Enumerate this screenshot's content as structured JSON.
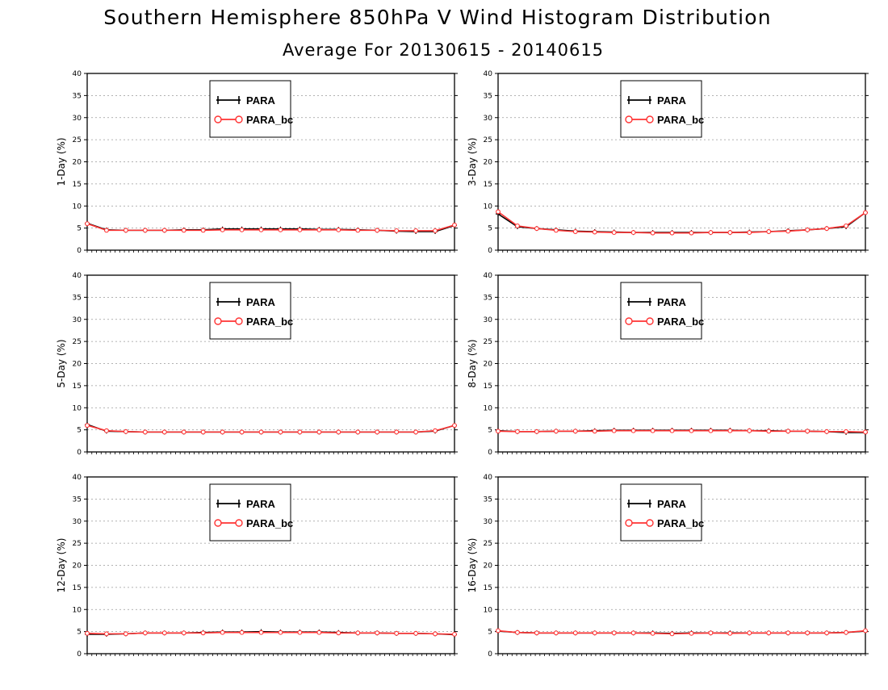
{
  "title": "Southern Hemisphere 850hPa V Wind Histogram Distribution",
  "subtitle": "Average For 20130615 - 20140615",
  "colors": {
    "PARA": "#000000",
    "PARA_bc": "#ff3333",
    "grid": "#999999"
  },
  "chart_data": [
    {
      "type": "line",
      "ylabel": "1-Day (%)",
      "ylim": [
        0,
        40
      ],
      "yticks": [
        0,
        5,
        10,
        15,
        20,
        25,
        30,
        35,
        40
      ],
      "grid": true,
      "legend": "top-center",
      "series": [
        {
          "name": "PARA",
          "marker": "plus",
          "values": [
            6.1,
            4.6,
            4.5,
            4.5,
            4.5,
            4.6,
            4.6,
            4.8,
            4.8,
            4.8,
            4.8,
            4.8,
            4.7,
            4.7,
            4.6,
            4.5,
            4.3,
            4.2,
            4.2,
            5.6
          ]
        },
        {
          "name": "PARA_bc",
          "marker": "circle",
          "values": [
            6.0,
            4.5,
            4.5,
            4.5,
            4.5,
            4.5,
            4.5,
            4.6,
            4.6,
            4.6,
            4.6,
            4.6,
            4.6,
            4.6,
            4.5,
            4.5,
            4.4,
            4.4,
            4.4,
            5.7
          ]
        }
      ]
    },
    {
      "type": "line",
      "ylabel": "3-Day (%)",
      "ylim": [
        0,
        40
      ],
      "yticks": [
        0,
        5,
        10,
        15,
        20,
        25,
        30,
        35,
        40
      ],
      "grid": true,
      "legend": "top-center",
      "series": [
        {
          "name": "PARA",
          "marker": "plus",
          "values": [
            8.2,
            5.3,
            4.9,
            4.6,
            4.3,
            4.2,
            4.1,
            4.0,
            4.0,
            4.0,
            4.0,
            4.0,
            4.0,
            4.1,
            4.2,
            4.4,
            4.6,
            4.9,
            5.3,
            8.5
          ]
        },
        {
          "name": "PARA_bc",
          "marker": "circle",
          "values": [
            8.7,
            5.5,
            4.9,
            4.5,
            4.2,
            4.1,
            4.0,
            4.0,
            3.9,
            3.9,
            3.9,
            4.0,
            4.0,
            4.0,
            4.2,
            4.3,
            4.6,
            4.9,
            5.5,
            8.5
          ]
        }
      ]
    },
    {
      "type": "line",
      "ylabel": "5-Day (%)",
      "ylim": [
        0,
        40
      ],
      "yticks": [
        0,
        5,
        10,
        15,
        20,
        25,
        30,
        35,
        40
      ],
      "grid": true,
      "legend": "top-center",
      "series": [
        {
          "name": "PARA",
          "marker": "plus",
          "values": [
            6.2,
            4.7,
            4.6,
            4.5,
            4.5,
            4.5,
            4.5,
            4.5,
            4.5,
            4.5,
            4.5,
            4.5,
            4.5,
            4.5,
            4.5,
            4.5,
            4.5,
            4.5,
            4.7,
            6.0
          ]
        },
        {
          "name": "PARA_bc",
          "marker": "circle",
          "values": [
            6.0,
            4.8,
            4.6,
            4.5,
            4.5,
            4.5,
            4.5,
            4.5,
            4.5,
            4.5,
            4.5,
            4.5,
            4.5,
            4.5,
            4.5,
            4.5,
            4.5,
            4.5,
            4.8,
            6.0
          ]
        }
      ]
    },
    {
      "type": "line",
      "ylabel": "8-Day (%)",
      "ylim": [
        0,
        40
      ],
      "yticks": [
        0,
        5,
        10,
        15,
        20,
        25,
        30,
        35,
        40
      ],
      "grid": true,
      "legend": "top-center",
      "series": [
        {
          "name": "PARA",
          "marker": "plus",
          "values": [
            4.8,
            4.6,
            4.6,
            4.7,
            4.7,
            4.8,
            4.9,
            4.9,
            4.9,
            4.9,
            4.9,
            4.9,
            4.9,
            4.8,
            4.8,
            4.7,
            4.7,
            4.6,
            4.4,
            4.4
          ]
        },
        {
          "name": "PARA_bc",
          "marker": "circle",
          "values": [
            4.7,
            4.6,
            4.6,
            4.7,
            4.7,
            4.7,
            4.8,
            4.8,
            4.8,
            4.8,
            4.8,
            4.8,
            4.8,
            4.8,
            4.7,
            4.7,
            4.7,
            4.6,
            4.6,
            4.5
          ]
        }
      ]
    },
    {
      "type": "line",
      "ylabel": "12-Day (%)",
      "ylim": [
        0,
        40
      ],
      "yticks": [
        0,
        5,
        10,
        15,
        20,
        25,
        30,
        35,
        40
      ],
      "grid": true,
      "legend": "top-center",
      "series": [
        {
          "name": "PARA",
          "marker": "plus",
          "values": [
            4.4,
            4.4,
            4.5,
            4.7,
            4.7,
            4.7,
            4.8,
            4.9,
            4.9,
            5.0,
            4.9,
            4.9,
            4.9,
            4.8,
            4.7,
            4.7,
            4.6,
            4.6,
            4.5,
            4.3
          ]
        },
        {
          "name": "PARA_bc",
          "marker": "circle",
          "values": [
            4.6,
            4.5,
            4.5,
            4.7,
            4.7,
            4.7,
            4.7,
            4.8,
            4.8,
            4.8,
            4.8,
            4.8,
            4.8,
            4.7,
            4.7,
            4.7,
            4.6,
            4.6,
            4.5,
            4.4
          ]
        }
      ]
    },
    {
      "type": "line",
      "ylabel": "16-Day (%)",
      "ylim": [
        0,
        40
      ],
      "yticks": [
        0,
        5,
        10,
        15,
        20,
        25,
        30,
        35,
        40
      ],
      "grid": true,
      "legend": "top-center",
      "series": [
        {
          "name": "PARA",
          "marker": "plus",
          "values": [
            5.1,
            4.8,
            4.7,
            4.7,
            4.7,
            4.7,
            4.7,
            4.7,
            4.7,
            4.6,
            4.7,
            4.7,
            4.7,
            4.7,
            4.7,
            4.7,
            4.7,
            4.7,
            4.8,
            5.1
          ]
        },
        {
          "name": "PARA_bc",
          "marker": "circle",
          "values": [
            5.2,
            4.8,
            4.7,
            4.7,
            4.7,
            4.7,
            4.7,
            4.7,
            4.6,
            4.5,
            4.6,
            4.7,
            4.6,
            4.7,
            4.7,
            4.7,
            4.7,
            4.7,
            4.8,
            5.2
          ]
        }
      ]
    }
  ]
}
